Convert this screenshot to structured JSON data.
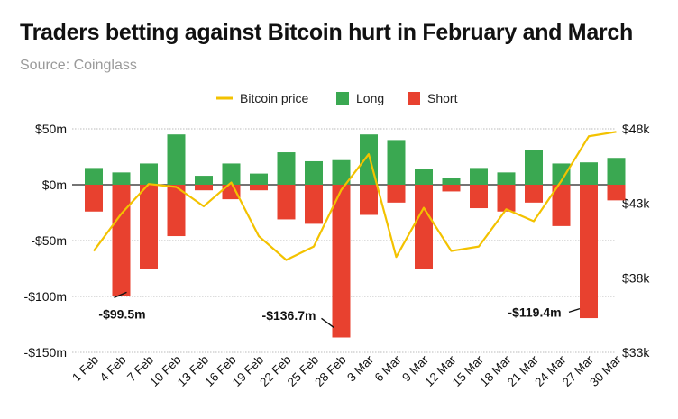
{
  "title": "Traders betting against Bitcoin hurt in February and March",
  "subtitle": "Source: Coinglass",
  "colors": {
    "long": "#3aa851",
    "short": "#e8412f",
    "price": "#f3c200",
    "grid": "#bbbbbb",
    "text": "#111111",
    "subtitle": "#9a9a9a"
  },
  "chart_data": {
    "type": "bar",
    "title": "Traders betting against Bitcoin hurt in February and March",
    "categories": [
      "1 Feb",
      "4 Feb",
      "7 Feb",
      "10 Feb",
      "13 Feb",
      "16 Feb",
      "19 Feb",
      "22 Feb",
      "25 Feb",
      "28 Feb",
      "3 Mar",
      "6 Mar",
      "9 Mar",
      "12 Mar",
      "15 Mar",
      "18 Mar",
      "21 Mar",
      "24 Mar",
      "27 Mar",
      "30 Mar"
    ],
    "legend": [
      "Bitcoin price",
      "Long",
      "Short"
    ],
    "legend_position": "top",
    "series": [
      {
        "name": "Long",
        "axis": "left",
        "values": [
          15,
          11,
          19,
          45,
          8,
          19,
          10,
          29,
          21,
          22,
          45,
          40,
          14,
          6,
          15,
          11,
          31,
          19,
          20,
          24
        ]
      },
      {
        "name": "Short",
        "axis": "left",
        "values": [
          -24,
          -99.5,
          -75,
          -46,
          -5,
          -13,
          -5,
          -31,
          -35,
          -136.7,
          -27,
          -16,
          -75,
          -6,
          -21,
          -24,
          -16,
          -37,
          -119.4,
          -14
        ]
      },
      {
        "name": "Bitcoin price",
        "axis": "right",
        "type": "line",
        "values": [
          39.8,
          42.3,
          44.3,
          44.1,
          42.8,
          44.4,
          40.8,
          39.2,
          40.1,
          43.9,
          46.3,
          39.4,
          42.7,
          39.8,
          40.1,
          42.6,
          41.8,
          44.5,
          47.5,
          47.8
        ]
      }
    ],
    "left_axis": {
      "ylim": [
        -150,
        50
      ],
      "ticks": [
        50,
        0,
        -50,
        -100,
        -150
      ],
      "tick_labels": [
        "$50m",
        "$0m",
        "-$50m",
        "-$100m",
        "-$150m"
      ]
    },
    "right_axis": {
      "ylim": [
        33,
        48
      ],
      "ticks": [
        48,
        43,
        38,
        33
      ],
      "tick_labels": [
        "$48k",
        "$43k",
        "$38k",
        "$33k"
      ]
    },
    "annotations": [
      {
        "text": "-$99.5m",
        "category": "4 Feb"
      },
      {
        "text": "-$136.7m",
        "category": "28 Feb"
      },
      {
        "text": "-$119.4m",
        "category": "27 Mar"
      }
    ],
    "grid": true
  }
}
